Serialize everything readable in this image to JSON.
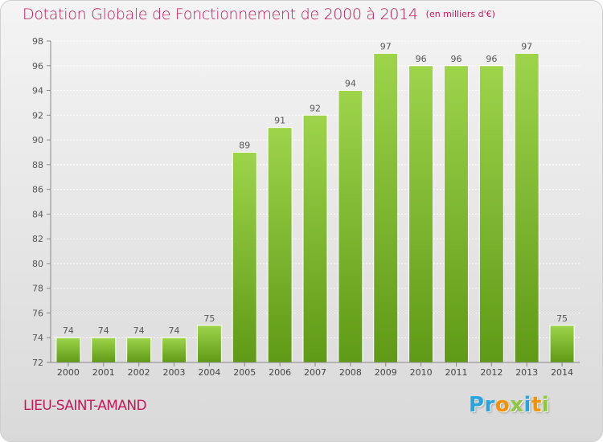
{
  "header": {
    "title": "Dotation Globale de Fonctionnement de 2000 à 2014",
    "unit": "(en milliers d'€)"
  },
  "footer": {
    "place": "LIEU-SAINT-AMAND",
    "logo": "Proxiti"
  },
  "colors": {
    "title": "#c2185b",
    "bar_light": "#9dd44a",
    "bar_dark": "#5f9a16",
    "logo_blue": "#29a3dd",
    "logo_orange": "#f39200",
    "logo_green": "#8dc63f"
  },
  "chart_data": {
    "type": "bar",
    "title": "Dotation Globale de Fonctionnement de 2000 à 2014",
    "subtitle": "(en milliers d'€)",
    "categories": [
      "2000",
      "2001",
      "2002",
      "2003",
      "2004",
      "2005",
      "2006",
      "2007",
      "2008",
      "2009",
      "2010",
      "2011",
      "2012",
      "2013",
      "2014"
    ],
    "values": [
      74,
      74,
      74,
      74,
      75,
      89,
      91,
      92,
      94,
      97,
      96,
      96,
      96,
      97,
      75
    ],
    "ylim": [
      72,
      98
    ],
    "yticks": [
      72,
      74,
      76,
      78,
      80,
      82,
      84,
      86,
      88,
      90,
      92,
      94,
      96,
      98
    ],
    "grid": true,
    "legend": "none"
  }
}
